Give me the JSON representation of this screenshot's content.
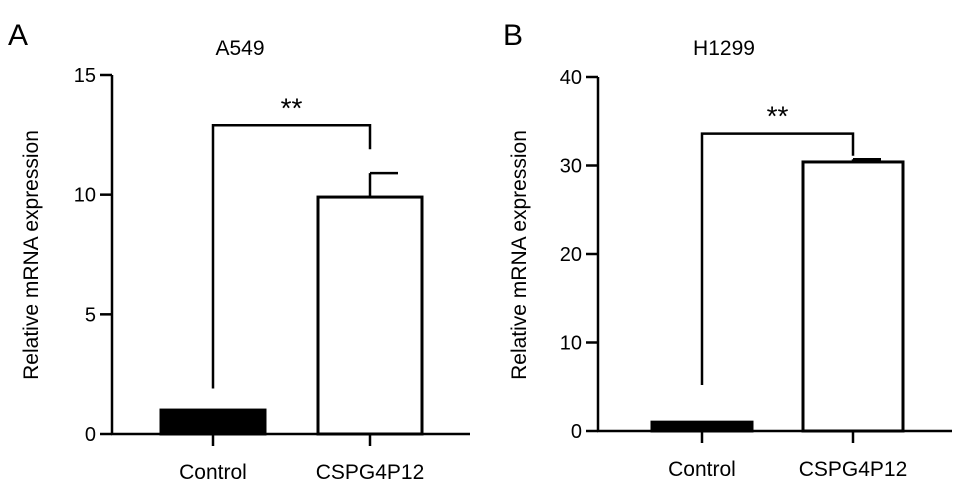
{
  "chart_data": [
    {
      "type": "bar",
      "panel_letter": "A",
      "title": "A549",
      "xlabel": "",
      "ylabel": "Relative mRNA expression",
      "categories": [
        "Control",
        "CSPG4P12"
      ],
      "values": [
        1.0,
        9.9
      ],
      "error": [
        0.0,
        1.0
      ],
      "bar_fill": [
        "#000000",
        "#ffffff"
      ],
      "ylim": [
        0,
        15
      ],
      "yticks": [
        0,
        5,
        10,
        15
      ],
      "significance": {
        "label": "**",
        "from": 0,
        "to": 1,
        "level": 12.9,
        "left_drop": 1.9,
        "right_drop": 11.9
      },
      "grid": false,
      "legend": "none"
    },
    {
      "type": "bar",
      "panel_letter": "B",
      "title": "H1299",
      "xlabel": "",
      "ylabel": "Relative mRNA expression",
      "categories": [
        "Control",
        "CSPG4P12"
      ],
      "values": [
        1.0,
        30.4
      ],
      "error": [
        0.0,
        0.3
      ],
      "bar_fill": [
        "#000000",
        "#ffffff"
      ],
      "ylim": [
        0,
        40
      ],
      "yticks": [
        0,
        10,
        20,
        30,
        40
      ],
      "significance": {
        "label": "**",
        "from": 0,
        "to": 1,
        "level": 33.6,
        "left_drop": 5.2,
        "right_drop": 31.1
      },
      "grid": false,
      "legend": "none"
    }
  ]
}
